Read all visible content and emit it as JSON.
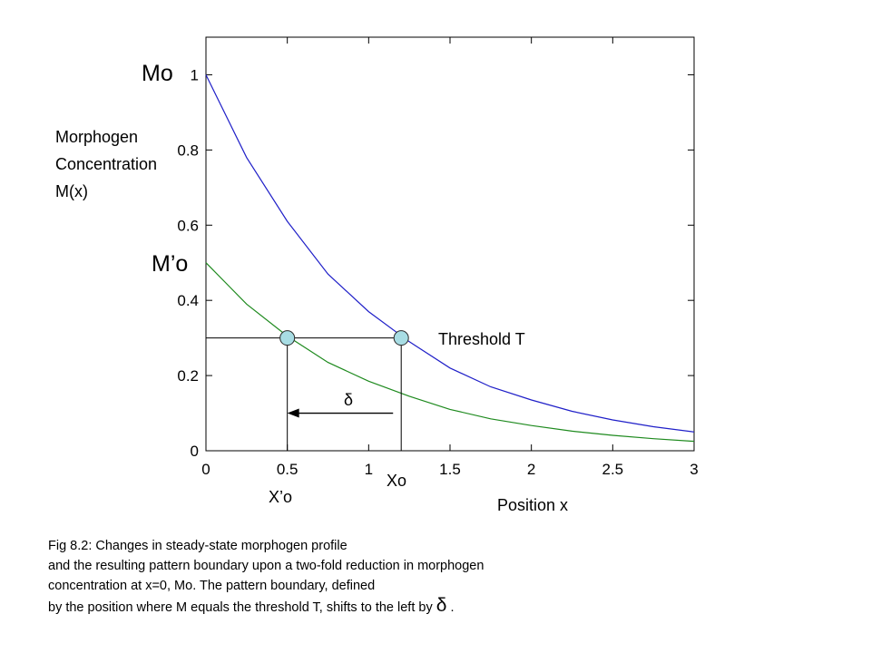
{
  "chart_data": {
    "type": "line",
    "x_ticks": [
      "0",
      "0.5",
      "1",
      "1.5",
      "2",
      "2.5",
      "3"
    ],
    "y_ticks": [
      "0",
      "0.2",
      "0.4",
      "0.6",
      "0.8",
      "1"
    ],
    "xlim": [
      0,
      3
    ],
    "ylim": [
      0,
      1.1
    ],
    "grid": false,
    "series": [
      {
        "color": "#1f1fc8",
        "x": [
          0,
          0.25,
          0.5,
          0.75,
          1,
          1.25,
          1.5,
          1.75,
          2,
          2.25,
          2.5,
          2.75,
          3
        ],
        "y": [
          1.0,
          0.78,
          0.61,
          0.47,
          0.37,
          0.29,
          0.22,
          0.17,
          0.135,
          0.105,
          0.082,
          0.064,
          0.05
        ]
      },
      {
        "color": "#1e8a1e",
        "x": [
          0,
          0.25,
          0.5,
          0.75,
          1,
          1.25,
          1.5,
          1.75,
          2,
          2.25,
          2.5,
          2.75,
          3
        ],
        "y": [
          0.5,
          0.39,
          0.305,
          0.235,
          0.185,
          0.145,
          0.11,
          0.085,
          0.067,
          0.052,
          0.041,
          0.032,
          0.025
        ]
      }
    ],
    "threshold": 0.3,
    "points": [
      {
        "x": 0.5,
        "y": 0.3,
        "label": "X’o"
      },
      {
        "x": 1.2,
        "y": 0.3,
        "label": "Xo"
      }
    ],
    "arrow": {
      "from_x": 1.15,
      "to_x": 0.5,
      "y": 0.1,
      "label": "δ"
    },
    "annotations": {
      "mo": "Mo",
      "m_prime_o": "M’o",
      "ylabel_line1": "Morphogen",
      "ylabel_line2": "Concentration",
      "ylabel_line3": "M(x)",
      "threshold_label": "Threshold T",
      "delta": "δ",
      "x_prime_o": "X’o",
      "xo": "Xo",
      "xlabel": "Position x"
    }
  },
  "caption": {
    "line1": "Fig 8.2: Changes in steady-state morphogen profile",
    "line2": "and the resulting pattern boundary upon a two-fold reduction in morphogen",
    "line3": "concentration at x=0, Mo.   The pattern boundary, defined",
    "line4": "by the position where M equals the threshold T,  shifts to the left by ",
    "line4_symbol": "δ",
    "line4_end": " ."
  }
}
